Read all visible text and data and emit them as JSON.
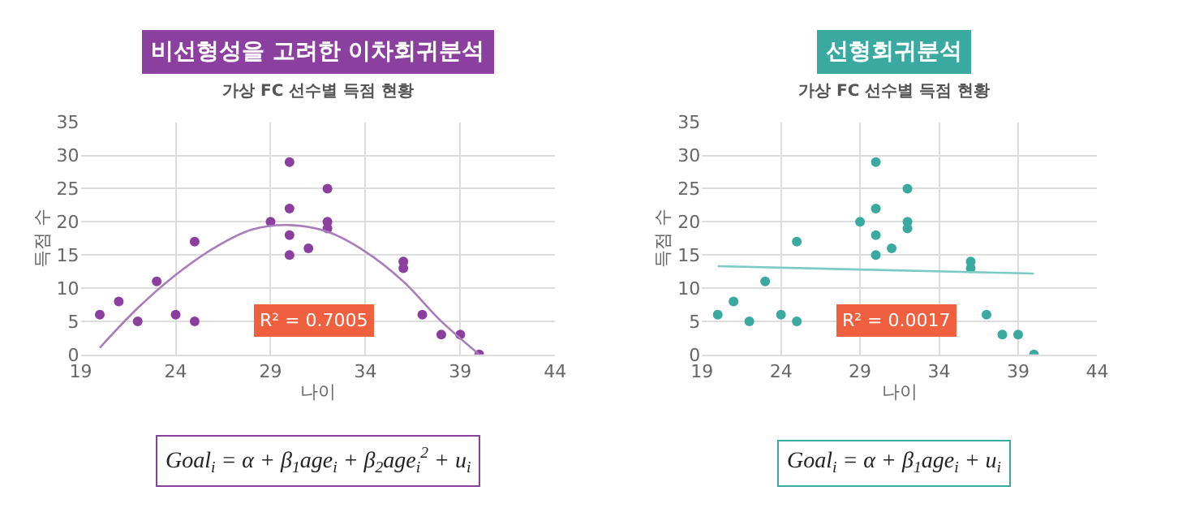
{
  "chart_data": [
    {
      "type": "scatter",
      "title": "비선형성을 고려한 이차회귀분석",
      "subtitle": "가상 FC 선수별 득점 현황",
      "xlabel": "나이",
      "ylabel": "득점 수",
      "xlim": [
        19,
        44
      ],
      "xticks": [
        19,
        24,
        29,
        34,
        39,
        44
      ],
      "ylim": [
        0,
        35
      ],
      "yticks": [
        0,
        5,
        10,
        15,
        20,
        25,
        30,
        35
      ],
      "grid": true,
      "color": "#8b3f9e",
      "series": [
        {
          "marker": "circle",
          "color": "#8b3f9e",
          "x": [
            20,
            21,
            22,
            23,
            24,
            25,
            25,
            29,
            30,
            30,
            30,
            30,
            31,
            32,
            32,
            32,
            36,
            36,
            37,
            38,
            39,
            40
          ],
          "values": [
            6,
            8,
            5,
            11,
            6,
            5,
            17,
            20,
            29,
            22,
            18,
            15,
            16,
            25,
            20,
            19,
            14,
            13,
            6,
            3,
            3,
            0
          ]
        },
        {
          "type": "line",
          "marker": "none",
          "color": "#a97cbb",
          "x": [
            20,
            22,
            24,
            26,
            28,
            30,
            32,
            34,
            36,
            38,
            40
          ],
          "values": [
            1,
            7,
            12,
            16,
            18.8,
            19.5,
            18.5,
            15.5,
            11,
            5,
            0
          ]
        }
      ],
      "annotations": [
        "R² = 0.7005",
        "Goal$_{i}$ = α + β$_{1}$age$_{i}$ + β$_{2}$age$_{i}$$^{2}$ + u$_{i}$"
      ]
    },
    {
      "type": "scatter",
      "title": "선형회귀분석",
      "subtitle": "가상 FC 선수별 득점 현황",
      "xlabel": "나이",
      "ylabel": "득점 수",
      "xlim": [
        19,
        44
      ],
      "xticks": [
        19,
        24,
        29,
        34,
        39,
        44
      ],
      "ylim": [
        0,
        35
      ],
      "yticks": [
        0,
        5,
        10,
        15,
        20,
        25,
        30,
        35
      ],
      "grid": true,
      "color": "#3aa9a0",
      "series": [
        {
          "marker": "circle",
          "color": "#3aa9a0",
          "x": [
            20,
            21,
            22,
            23,
            24,
            25,
            25,
            29,
            30,
            30,
            30,
            30,
            31,
            32,
            32,
            32,
            36,
            36,
            37,
            38,
            39,
            40
          ],
          "values": [
            6,
            8,
            5,
            11,
            6,
            5,
            17,
            20,
            29,
            22,
            18,
            15,
            16,
            25,
            20,
            19,
            14,
            13,
            6,
            3,
            3,
            0
          ]
        },
        {
          "type": "line",
          "marker": "none",
          "color": "#7ccac4",
          "x": [
            20,
            40
          ],
          "values": [
            13.3,
            12.2
          ]
        }
      ],
      "annotations": [
        "R² = 0.0017",
        "Goal$_{i}$ = α + β$_{1}$age$_{i}$ + u$_{i}$"
      ]
    }
  ]
}
